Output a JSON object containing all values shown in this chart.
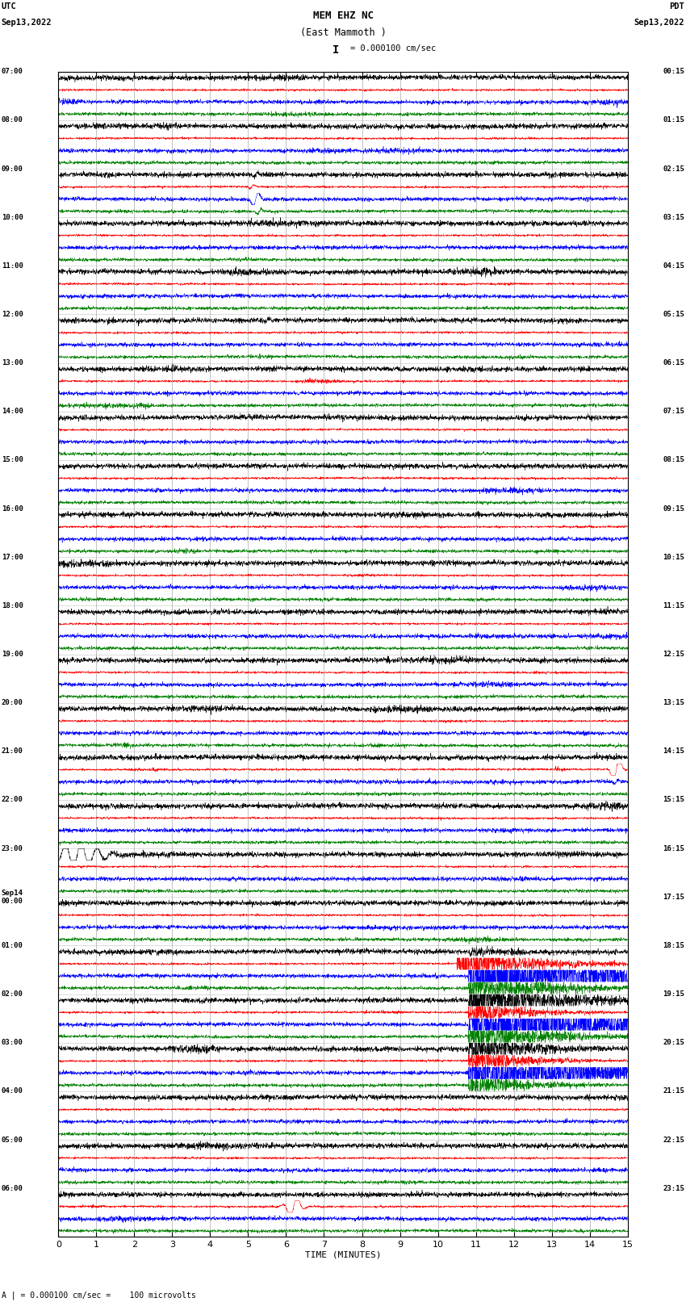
{
  "title_line1": "MEM EHZ NC",
  "title_line2": "(East Mammoth )",
  "scale_label": "= 0.000100 cm/sec",
  "bottom_label": "A | = 0.000100 cm/sec =    100 microvolts",
  "utc_label": "UTC\nSep13,2022",
  "pdt_label": "PDT\nSep13,2022",
  "xlabel": "TIME (MINUTES)",
  "xmin": 0,
  "xmax": 15,
  "xticks": [
    0,
    1,
    2,
    3,
    4,
    5,
    6,
    7,
    8,
    9,
    10,
    11,
    12,
    13,
    14,
    15
  ],
  "left_times": [
    "07:00",
    "08:00",
    "09:00",
    "10:00",
    "11:00",
    "12:00",
    "13:00",
    "14:00",
    "15:00",
    "16:00",
    "17:00",
    "18:00",
    "19:00",
    "20:00",
    "21:00",
    "22:00",
    "23:00",
    "00:00",
    "01:00",
    "02:00",
    "03:00",
    "04:00",
    "05:00",
    "06:00"
  ],
  "left_times_special": [
    16
  ],
  "right_times": [
    "00:15",
    "01:15",
    "02:15",
    "03:15",
    "04:15",
    "05:15",
    "06:15",
    "07:15",
    "08:15",
    "09:15",
    "10:15",
    "11:15",
    "12:15",
    "13:15",
    "14:15",
    "15:15",
    "16:15",
    "17:15",
    "18:15",
    "19:15",
    "20:15",
    "21:15",
    "22:15",
    "23:15"
  ],
  "colors_cycle": [
    "black",
    "red",
    "blue",
    "green"
  ],
  "n_rows": 96,
  "bg_color": "#ffffff",
  "plot_bg": "#ffffff",
  "grid_vcolor": "#888888",
  "grid_hcolor": "#888888"
}
